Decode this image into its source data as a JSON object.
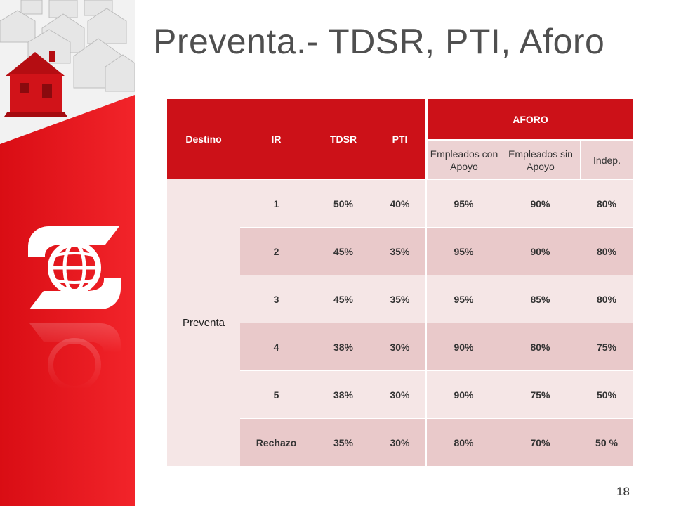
{
  "slide": {
    "title": "Preventa.- TDSR, PTI, Aforo",
    "page_number": "18"
  },
  "colors": {
    "brand_red": "#cc1118",
    "row_light": "#f5e6e6",
    "row_dark": "#e9c9ca"
  },
  "branding": {
    "logo_icon": "scotiabank-logo-icon",
    "image": "red-house-among-gray-houses"
  },
  "table": {
    "headers": {
      "destino": "Destino",
      "ir": "IR",
      "tdsr": "TDSR",
      "pti": "PTI",
      "aforo": "AFORO",
      "empleados_apoyo": "Empleados con Apoyo",
      "empleados_sin_apoyo": "Empleados sin Apoyo",
      "indep": "Indep."
    },
    "destino_value": "Preventa",
    "rows": [
      {
        "ir": "1",
        "tdsr": "50%",
        "pti": "40%",
        "emp_apoyo": "95%",
        "emp_sin_apoyo": "90%",
        "indep": "80%"
      },
      {
        "ir": "2",
        "tdsr": "45%",
        "pti": "35%",
        "emp_apoyo": "95%",
        "emp_sin_apoyo": "90%",
        "indep": "80%"
      },
      {
        "ir": "3",
        "tdsr": "45%",
        "pti": "35%",
        "emp_apoyo": "95%",
        "emp_sin_apoyo": "85%",
        "indep": "80%"
      },
      {
        "ir": "4",
        "tdsr": "38%",
        "pti": "30%",
        "emp_apoyo": "90%",
        "emp_sin_apoyo": "80%",
        "indep": "75%"
      },
      {
        "ir": "5",
        "tdsr": "38%",
        "pti": "30%",
        "emp_apoyo": "90%",
        "emp_sin_apoyo": "75%",
        "indep": "50%"
      },
      {
        "ir": "Rechazo",
        "tdsr": "35%",
        "pti": "30%",
        "emp_apoyo": "80%",
        "emp_sin_apoyo": "70%",
        "indep": "50 %"
      }
    ]
  }
}
